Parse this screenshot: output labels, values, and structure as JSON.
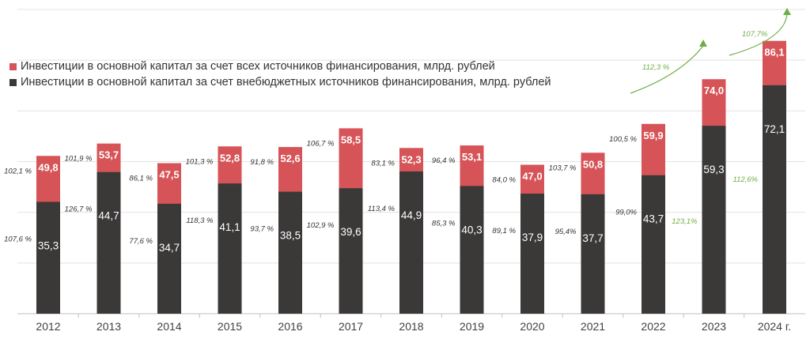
{
  "chart_data": {
    "type": "bar",
    "stacked": "overlay",
    "categories": [
      "2012",
      "2013",
      "2014",
      "2015",
      "2016",
      "2017",
      "2018",
      "2019",
      "2020",
      "2021",
      "2022",
      "2023",
      "2024 г."
    ],
    "series": [
      {
        "name": "Инвестиции в основной капитал за счет всех источников финансирования, млрд. рублей",
        "color": "#d65457",
        "values": [
          49.8,
          53.7,
          47.5,
          52.8,
          52.6,
          58.5,
          52.3,
          53.1,
          47.0,
          50.8,
          59.9,
          74.0,
          86.1
        ],
        "labels": [
          "49,8",
          "53,7",
          "47,5",
          "52,8",
          "52,6",
          "58,5",
          "52,3",
          "53,1",
          "47,0",
          "50,8",
          "59,9",
          "74,0",
          "86,1"
        ],
        "growth": [
          "102,1 %",
          "101,9 %",
          "86,1 %",
          "101,3 %",
          "91,8 %",
          "106,7 %",
          "83,1 %",
          "96,4 %",
          "84,0 %",
          "103,7 %",
          "100,5 %",
          "112,3 %",
          "107,7%"
        ]
      },
      {
        "name": "Инвестиции в основной капитал за счет внебюджетных источников финансирования, млрд. рублей",
        "color": "#3b3838",
        "values": [
          35.3,
          44.7,
          34.7,
          41.1,
          38.5,
          39.6,
          44.9,
          40.3,
          37.9,
          37.7,
          43.7,
          59.3,
          72.1
        ],
        "labels": [
          "35,3",
          "44,7",
          "34,7",
          "41,1",
          "38,5",
          "39,6",
          "44,9",
          "40,3",
          "37,9",
          "37,7",
          "43,7",
          "59,3",
          "72,1"
        ],
        "growth": [
          "107,6 %",
          "126,7 %",
          "77,6 %",
          "118,3 %",
          "93,7 %",
          "102,9 %",
          "113,4 %",
          "85,3 %",
          "89,1 %",
          "95,4%",
          "99,0%",
          "123,1%",
          "112,6%"
        ]
      }
    ],
    "highlight_color": "#70ad47",
    "highlighted_years": [
      "2023",
      "2024 г."
    ],
    "ylim": [
      0,
      96
    ],
    "grid": true,
    "legend_position": "top-left",
    "title": "",
    "xlabel": "",
    "ylabel": ""
  }
}
